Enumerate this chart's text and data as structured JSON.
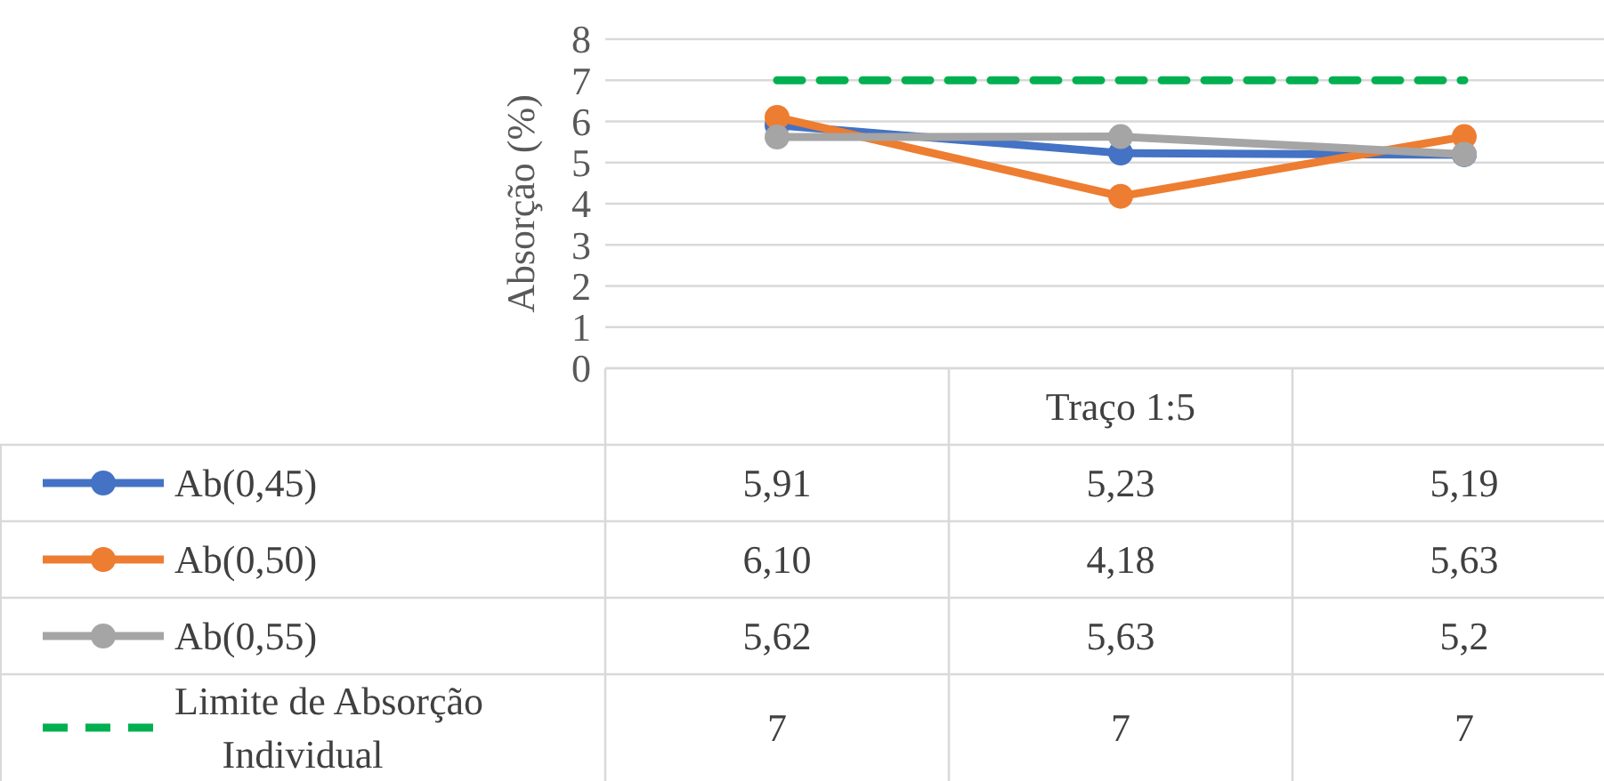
{
  "chart_data": {
    "type": "line",
    "ylabel": "Absorção (%)",
    "categories": [
      null,
      "Traço 1:5",
      null
    ],
    "series": [
      {
        "name": "Ab(0,45)",
        "color": "#4472c4",
        "values": [
          5.91,
          5.23,
          5.19
        ],
        "value_labels": [
          "5,91",
          "5,23",
          "5,19"
        ],
        "marker": "circle",
        "line_style": "solid"
      },
      {
        "name": "Ab(0,50)",
        "color": "#ed7d31",
        "values": [
          6.1,
          4.18,
          5.63
        ],
        "value_labels": [
          "6,10",
          "4,18",
          "5,63"
        ],
        "marker": "circle",
        "line_style": "solid"
      },
      {
        "name": "Ab(0,55)",
        "color": "#a5a5a5",
        "values": [
          5.62,
          5.63,
          5.2
        ],
        "value_labels": [
          "5,62",
          "5,63",
          "5,2"
        ],
        "marker": "circle",
        "line_style": "solid"
      },
      {
        "name": "Limite de Absorção Individual",
        "color": "#00b050",
        "values": [
          7,
          7,
          7
        ],
        "value_labels": [
          "7",
          "7",
          "7"
        ],
        "marker": "none",
        "line_style": "dashed"
      }
    ],
    "ylim": [
      0,
      8
    ],
    "yticks": [
      0,
      1,
      2,
      3,
      4,
      5,
      6,
      7,
      8
    ],
    "grid": "y",
    "legend": "bottom"
  }
}
